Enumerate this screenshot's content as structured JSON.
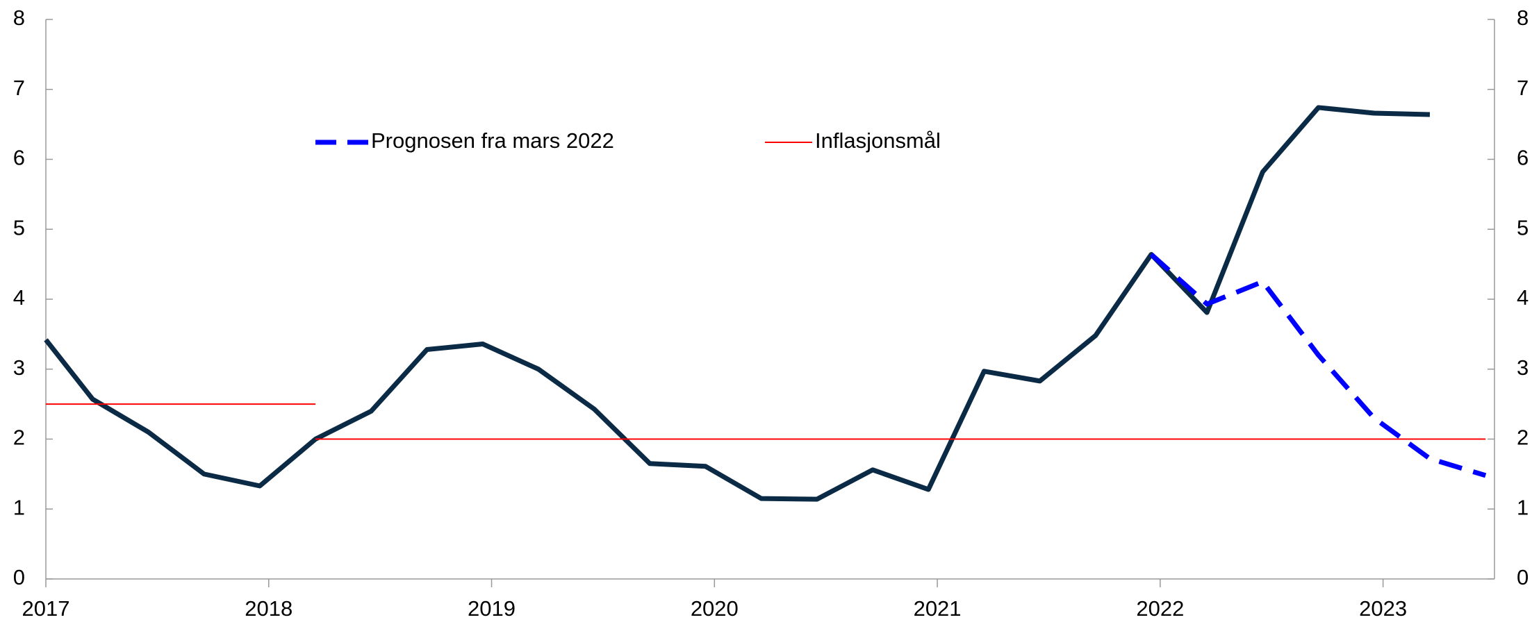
{
  "chart_data": {
    "type": "line",
    "xlim": [
      2017,
      2023.5
    ],
    "xticks": [
      2017,
      2018,
      2019,
      2020,
      2021,
      2022,
      2023
    ],
    "ylim": [
      0,
      8
    ],
    "yticks": [
      0,
      1,
      2,
      3,
      4,
      5,
      6,
      7,
      8
    ],
    "y2lim": [
      0,
      8
    ],
    "y2ticks": [
      0,
      1,
      2,
      3,
      4,
      5,
      6,
      7,
      8
    ],
    "grid": false,
    "legend": "top",
    "series": [
      {
        "color": "#0a2a45",
        "style": "solid",
        "x": [
          2017.0,
          2017.21,
          2017.46,
          2017.71,
          2017.96,
          2018.21,
          2018.46,
          2018.71,
          2018.96,
          2019.21,
          2019.46,
          2019.71,
          2019.96,
          2020.21,
          2020.46,
          2020.71,
          2020.96,
          2021.21,
          2021.46,
          2021.71,
          2021.96,
          2022.21,
          2022.46,
          2022.71,
          2022.96,
          2023.21
        ],
        "values": [
          3.42,
          2.57,
          2.1,
          1.5,
          1.33,
          2.0,
          2.4,
          3.28,
          3.36,
          3.0,
          2.43,
          1.65,
          1.61,
          1.15,
          1.14,
          1.56,
          1.28,
          2.97,
          2.83,
          3.48,
          4.64,
          3.81,
          5.82,
          6.74,
          6.66,
          6.64
        ]
      },
      {
        "name": "Prognosen fra mars 2022",
        "color": "#0000ff",
        "style": "dashed",
        "x": [
          2021.96,
          2022.21,
          2022.46,
          2022.71,
          2022.96,
          2023.21,
          2023.46
        ],
        "values": [
          4.64,
          3.93,
          4.25,
          3.2,
          2.3,
          1.72,
          1.48
        ]
      },
      {
        "name": "Inflasjonsmål",
        "color": "#ff0000",
        "style": "thin",
        "x": [
          2017.0,
          2018.21,
          2018.21,
          2018.21,
          2023.46
        ],
        "values": [
          2.5,
          2.5,
          null,
          2.0,
          2.0
        ]
      }
    ]
  }
}
